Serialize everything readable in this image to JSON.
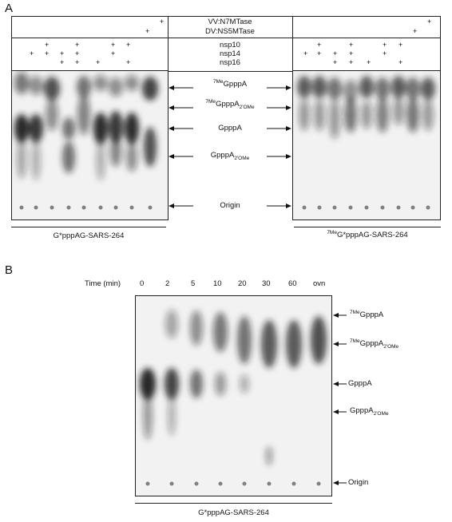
{
  "panel_a": {
    "letter": "A",
    "header_rows": [
      {
        "label": "VV:N7MTase"
      },
      {
        "label": "DV:NS5MTase"
      },
      {
        "label": "nsp10"
      },
      {
        "label": "nsp14"
      },
      {
        "label": "nsp16"
      }
    ],
    "bands": [
      {
        "pre": "",
        "sup": "7Me",
        "main": "GpppA",
        "sub": ""
      },
      {
        "pre": "",
        "sup": "7Me",
        "main": "GpppA",
        "sub": "2'OMe"
      },
      {
        "pre": "",
        "sup": "",
        "main": "GpppA",
        "sub": ""
      },
      {
        "pre": "",
        "sup": "",
        "main": "GpppA",
        "sub": "2'OMe"
      },
      {
        "pre": "",
        "sup": "",
        "main": "Origin",
        "sub": ""
      }
    ],
    "left_caption": "G*pppAG-SARS-264",
    "right_caption_sup": "7Me",
    "right_caption_main": "G*pppAG-SARS-264"
  },
  "panel_b": {
    "letter": "B",
    "time_label": "Time (min)",
    "time_points": [
      "0",
      "2",
      "5",
      "10",
      "20",
      "30",
      "60",
      "ovn"
    ],
    "bands": [
      {
        "sup": "7Me",
        "main": "GpppA",
        "sub": ""
      },
      {
        "sup": "7Me",
        "main": "GpppA",
        "sub": "2'OMe"
      },
      {
        "sup": "",
        "main": "GpppA",
        "sub": ""
      },
      {
        "sup": "",
        "main": "GpppA",
        "sub": "2'OMe"
      },
      {
        "sup": "",
        "main": "Origin",
        "sub": ""
      }
    ],
    "caption": "G*pppAG-SARS-264"
  },
  "plus_sign": "+"
}
